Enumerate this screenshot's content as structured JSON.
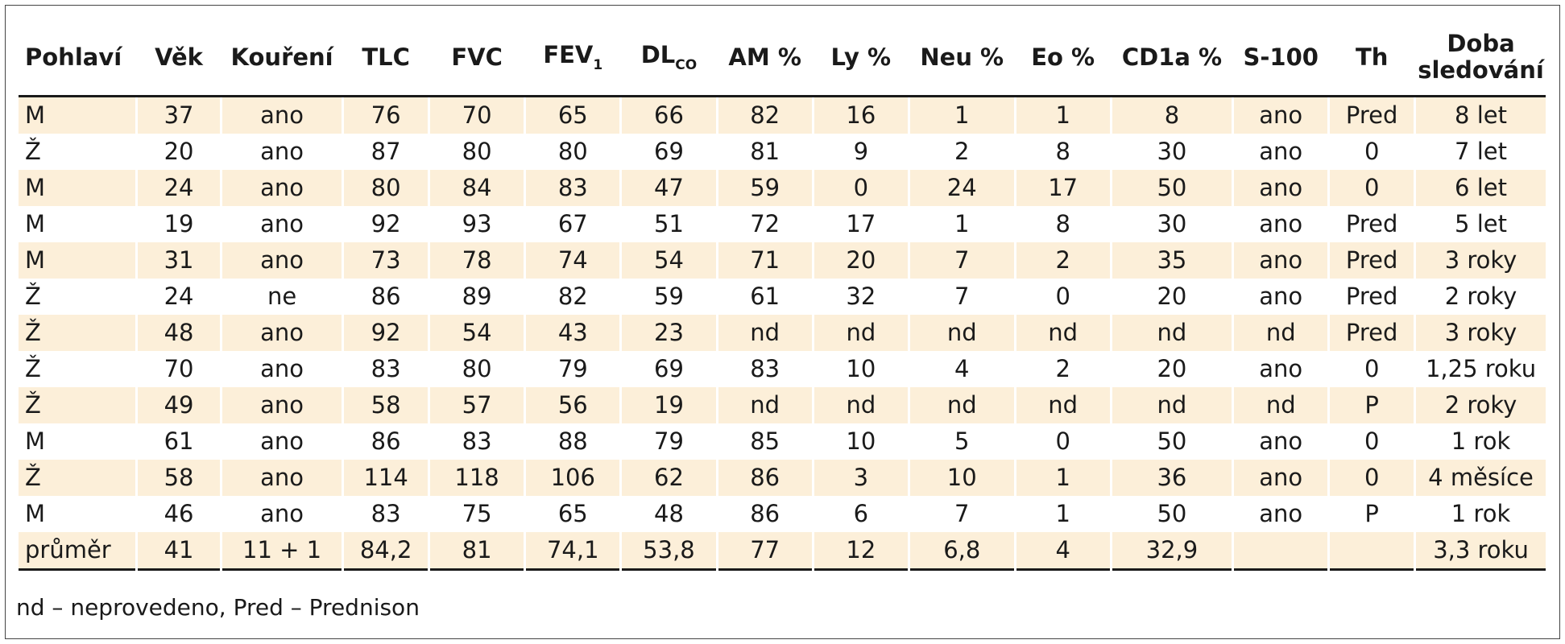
{
  "table": {
    "headers": [
      {
        "main": "Pohlaví",
        "sub": ""
      },
      {
        "main": "Věk",
        "sub": ""
      },
      {
        "main": "Kouření",
        "sub": ""
      },
      {
        "main": "TLC",
        "sub": ""
      },
      {
        "main": "FVC",
        "sub": ""
      },
      {
        "main": "FEV",
        "sub": "1"
      },
      {
        "main": "DL",
        "sub": "CO"
      },
      {
        "main": "AM %",
        "sub": ""
      },
      {
        "main": "Ly %",
        "sub": ""
      },
      {
        "main": "Neu %",
        "sub": ""
      },
      {
        "main": "Eo %",
        "sub": ""
      },
      {
        "main": "CD1a %",
        "sub": ""
      },
      {
        "main": "S-100",
        "sub": ""
      },
      {
        "main": "Th",
        "sub": ""
      },
      {
        "main": "Doba sledování",
        "sub": ""
      }
    ],
    "rows": [
      [
        "M",
        "37",
        "ano",
        "76",
        "70",
        "65",
        "66",
        "82",
        "16",
        "1",
        "1",
        "8",
        "ano",
        "Pred",
        "8 let"
      ],
      [
        "Ž",
        "20",
        "ano",
        "87",
        "80",
        "80",
        "69",
        "81",
        "9",
        "2",
        "8",
        "30",
        "ano",
        "0",
        "7 let"
      ],
      [
        "M",
        "24",
        "ano",
        "80",
        "84",
        "83",
        "47",
        "59",
        "0",
        "24",
        "17",
        "50",
        "ano",
        "0",
        "6 let"
      ],
      [
        "M",
        "19",
        "ano",
        "92",
        "93",
        "67",
        "51",
        "72",
        "17",
        "1",
        "8",
        "30",
        "ano",
        "Pred",
        "5 let"
      ],
      [
        "M",
        "31",
        "ano",
        "73",
        "78",
        "74",
        "54",
        "71",
        "20",
        "7",
        "2",
        "35",
        "ano",
        "Pred",
        "3 roky"
      ],
      [
        "Ž",
        "24",
        "ne",
        "86",
        "89",
        "82",
        "59",
        "61",
        "32",
        "7",
        "0",
        "20",
        "ano",
        "Pred",
        "2 roky"
      ],
      [
        "Ž",
        "48",
        "ano",
        "92",
        "54",
        "43",
        "23",
        "nd",
        "nd",
        "nd",
        "nd",
        "nd",
        "nd",
        "Pred",
        "3 roky"
      ],
      [
        "Ž",
        "70",
        "ano",
        "83",
        "80",
        "79",
        "69",
        "83",
        "10",
        "4",
        "2",
        "20",
        "ano",
        "0",
        "1,25 roku"
      ],
      [
        "Ž",
        "49",
        "ano",
        "58",
        "57",
        "56",
        "19",
        "nd",
        "nd",
        "nd",
        "nd",
        "nd",
        "nd",
        "P",
        "2 roky"
      ],
      [
        "M",
        "61",
        "ano",
        "86",
        "83",
        "88",
        "79",
        "85",
        "10",
        "5",
        "0",
        "50",
        "ano",
        "0",
        "1 rok"
      ],
      [
        "Ž",
        "58",
        "ano",
        "114",
        "118",
        "106",
        "62",
        "86",
        "3",
        "10",
        "1",
        "36",
        "ano",
        "0",
        "4 měsíce"
      ],
      [
        "M",
        "46",
        "ano",
        "83",
        "75",
        "65",
        "48",
        "86",
        "6",
        "7",
        "1",
        "50",
        "ano",
        "P",
        "1 rok"
      ],
      [
        "průměr",
        "41",
        "11 + 1",
        "84,2",
        "81",
        "74,1",
        "53,8",
        "77",
        "12",
        "6,8",
        "4",
        "32,9",
        "",
        "",
        "3,3 roku"
      ]
    ]
  },
  "footnote": "nd – neprovedeno, Pred – Prednison",
  "colors": {
    "row_shade": "#fcefd9",
    "rule": "#1a1a1a",
    "border": "#444444"
  }
}
